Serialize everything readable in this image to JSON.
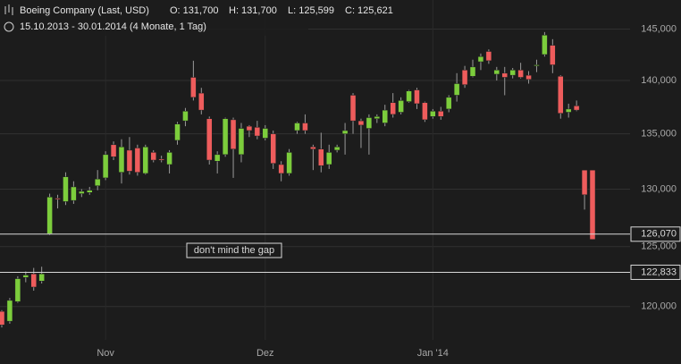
{
  "chart_data": {
    "type": "candlestick",
    "title": "Boeing Company (Last, USD)",
    "ohlc_labels": [
      "O: 131,700",
      "H: 131,700",
      "L: 125,599",
      "C: 125,621"
    ],
    "subtitle": "15.10.2013 - 30.01.2014 (4 Monate, 1 Tag)",
    "categories": [
      null,
      null,
      null,
      null,
      null,
      null,
      null,
      null,
      null,
      null,
      null,
      null,
      null,
      "Nov",
      null,
      null,
      null,
      null,
      null,
      null,
      null,
      null,
      null,
      null,
      null,
      null,
      null,
      null,
      null,
      null,
      null,
      null,
      null,
      "Dez",
      null,
      null,
      null,
      null,
      null,
      null,
      null,
      null,
      null,
      null,
      null,
      null,
      null,
      null,
      null,
      null,
      null,
      null,
      null,
      null,
      "Jan '14",
      null,
      null,
      null,
      null,
      null,
      null,
      null,
      null,
      null,
      null,
      null,
      null,
      null,
      null,
      null,
      null,
      null,
      null,
      null,
      null
    ],
    "open": [
      119600,
      118800,
      120400,
      122400,
      122700,
      122100,
      126100,
      129200,
      128900,
      129000,
      129600,
      129700,
      130300,
      131000,
      134000,
      131500,
      133500,
      133700,
      131400,
      133300,
      132700,
      132200,
      134400,
      136200,
      140300,
      138800,
      136400,
      132500,
      133100,
      136300,
      133100,
      135700,
      135600,
      134600,
      135000,
      132200,
      131400,
      135300,
      136000,
      133800,
      133600,
      132200,
      133500,
      135000,
      138600,
      136200,
      135500,
      136400,
      136000,
      137900,
      137000,
      138000,
      139100,
      137900,
      136600,
      137100,
      137300,
      138600,
      141000,
      140400,
      141800,
      142800,
      140600,
      140700,
      140500,
      141000,
      140500,
      141400,
      142500,
      143400,
      140400,
      137000,
      137600,
      131700,
      131700
    ],
    "high": [
      119700,
      120700,
      122500,
      122900,
      123200,
      123300,
      129600,
      129500,
      131500,
      130700,
      130000,
      130200,
      131700,
      133400,
      134300,
      134500,
      134700,
      134000,
      134000,
      133500,
      133000,
      133500,
      136100,
      137400,
      141900,
      139300,
      136600,
      133400,
      136500,
      136500,
      136000,
      135800,
      136200,
      135800,
      135300,
      132500,
      133600,
      136100,
      136800,
      134000,
      135100,
      134000,
      134000,
      136000,
      138800,
      136400,
      136800,
      136800,
      137700,
      138800,
      138400,
      139100,
      139300,
      138000,
      137300,
      137500,
      138600,
      140700,
      141400,
      142000,
      142600,
      143000,
      141300,
      141300,
      141200,
      141700,
      140900,
      142000,
      144700,
      144000,
      140500,
      137800,
      138100,
      131700,
      131700
    ],
    "low": [
      118300,
      118600,
      120300,
      122000,
      121300,
      121900,
      126000,
      128300,
      128600,
      128700,
      129300,
      129500,
      129900,
      130800,
      132600,
      130500,
      131300,
      131200,
      131300,
      132400,
      132400,
      131400,
      134000,
      135700,
      138100,
      136800,
      132200,
      131400,
      132900,
      131000,
      132400,
      134700,
      134500,
      134400,
      131800,
      130700,
      131200,
      135000,
      135000,
      131700,
      131500,
      131800,
      133300,
      133100,
      135000,
      133700,
      133100,
      136000,
      135700,
      136500,
      136800,
      137900,
      137300,
      136100,
      136400,
      136300,
      137000,
      138000,
      139300,
      140300,
      141000,
      141600,
      140000,
      138600,
      140200,
      140200,
      139700,
      140800,
      142300,
      140700,
      136400,
      136500,
      137100,
      128200,
      125599
    ],
    "close": [
      118500,
      120500,
      122300,
      122600,
      121600,
      122700,
      129300,
      129100,
      131100,
      130200,
      129800,
      129900,
      130900,
      133100,
      132900,
      133800,
      131600,
      131500,
      133800,
      132600,
      132600,
      133300,
      135900,
      137100,
      138400,
      137200,
      132600,
      133100,
      136400,
      133600,
      135500,
      135300,
      134800,
      135500,
      132300,
      131400,
      133300,
      136000,
      135300,
      133600,
      132100,
      133300,
      133800,
      135300,
      136200,
      135800,
      136500,
      136600,
      137200,
      136800,
      138100,
      139000,
      137800,
      136300,
      137100,
      136600,
      138400,
      139700,
      139600,
      141300,
      142300,
      141900,
      141000,
      140300,
      141000,
      140300,
      140100,
      141500,
      144400,
      141500,
      136900,
      137300,
      137200,
      129500,
      125621
    ],
    "up_color": "#7ccd3c",
    "down_color": "#ee5c5c",
    "log_scale": true,
    "ylim": [
      117300,
      147900
    ],
    "yticks": [
      {
        "value": 120000,
        "label": "120,000"
      },
      {
        "value": 125000,
        "label": "125,000"
      },
      {
        "value": 130000,
        "label": "130,000"
      },
      {
        "value": 135000,
        "label": "135,000"
      },
      {
        "value": 140000,
        "label": "140,000"
      },
      {
        "value": 145000,
        "label": "145,000"
      }
    ],
    "grid": true,
    "price_lines": [
      {
        "value": 126070,
        "label": "126,070"
      },
      {
        "value": 122833,
        "label": "122,833"
      }
    ],
    "annotation": "don't mind the gap"
  }
}
